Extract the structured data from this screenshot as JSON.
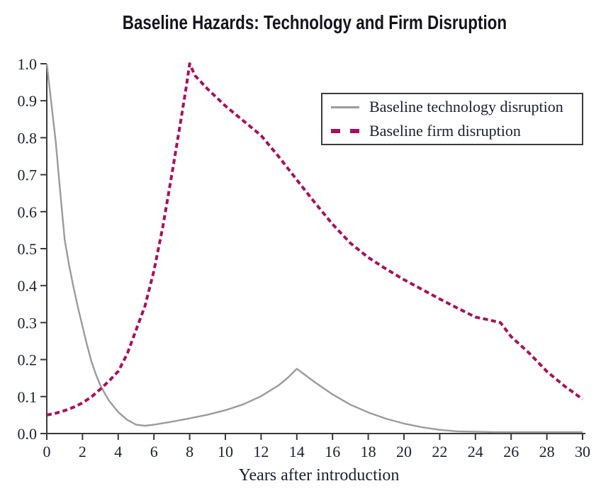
{
  "title": "Baseline Hazards: Technology and Firm Disruption",
  "axes": {
    "xlabel": "Years after introduction",
    "x_ticks": [
      "0",
      "2",
      "4",
      "6",
      "8",
      "10",
      "12",
      "14",
      "16",
      "18",
      "20",
      "22",
      "24",
      "26",
      "28",
      "30"
    ],
    "y_ticks": [
      "0.0",
      "0.1",
      "0.2",
      "0.3",
      "0.4",
      "0.5",
      "0.6",
      "0.7",
      "0.8",
      "0.9",
      "1.0"
    ]
  },
  "legend": {
    "items": [
      {
        "label": "Baseline technology disruption",
        "swatch": "solid-line",
        "color": "#9b9b9b"
      },
      {
        "label": "Baseline firm disruption",
        "swatch": "dashed-line",
        "color": "#a8105e"
      }
    ]
  },
  "colors": {
    "technology_line": "#9b9b9b",
    "firm_line": "#a8105e",
    "axis": "#3a3a3a",
    "text": "#1b2030"
  },
  "chart_data": {
    "type": "line",
    "title": "Baseline Hazards: Technology and Firm Disruption",
    "xlabel": "Years after introduction",
    "ylabel": "",
    "xlim": [
      0,
      30
    ],
    "ylim": [
      0,
      1.0
    ],
    "x_tick_step": 2,
    "y_tick_step": 0.1,
    "grid": false,
    "legend_position": "upper right",
    "series": [
      {
        "name": "Baseline technology disruption",
        "color": "#9b9b9b",
        "style": "solid",
        "width": 2.4,
        "points": [
          [
            0,
            1.0
          ],
          [
            0.25,
            0.895
          ],
          [
            0.5,
            0.79
          ],
          [
            0.75,
            0.655
          ],
          [
            1,
            0.525
          ],
          [
            1.25,
            0.455
          ],
          [
            1.5,
            0.395
          ],
          [
            1.75,
            0.34
          ],
          [
            2,
            0.29
          ],
          [
            2.25,
            0.24
          ],
          [
            2.5,
            0.195
          ],
          [
            2.75,
            0.16
          ],
          [
            3,
            0.13
          ],
          [
            3.25,
            0.108
          ],
          [
            3.5,
            0.088
          ],
          [
            4,
            0.058
          ],
          [
            4.5,
            0.037
          ],
          [
            5,
            0.024
          ],
          [
            5.5,
            0.021
          ],
          [
            6,
            0.024
          ],
          [
            6.5,
            0.028
          ],
          [
            7,
            0.032
          ],
          [
            8,
            0.041
          ],
          [
            9,
            0.051
          ],
          [
            10,
            0.063
          ],
          [
            11,
            0.079
          ],
          [
            12,
            0.101
          ],
          [
            13,
            0.131
          ],
          [
            13.5,
            0.151
          ],
          [
            14,
            0.175
          ],
          [
            14.5,
            0.157
          ],
          [
            15,
            0.139
          ],
          [
            16,
            0.106
          ],
          [
            17,
            0.078
          ],
          [
            18,
            0.057
          ],
          [
            19,
            0.04
          ],
          [
            20,
            0.027
          ],
          [
            21,
            0.017
          ],
          [
            22,
            0.01
          ],
          [
            23,
            0.006
          ],
          [
            24,
            0.005
          ],
          [
            25,
            0.004
          ],
          [
            26,
            0.004
          ],
          [
            27,
            0.004
          ],
          [
            28,
            0.004
          ],
          [
            29,
            0.004
          ],
          [
            30,
            0.004
          ]
        ]
      },
      {
        "name": "Baseline firm disruption",
        "color": "#a8105e",
        "style": "dashed",
        "width": 4,
        "points": [
          [
            0,
            0.05
          ],
          [
            0.5,
            0.055
          ],
          [
            1,
            0.062
          ],
          [
            1.5,
            0.071
          ],
          [
            2,
            0.083
          ],
          [
            2.5,
            0.099
          ],
          [
            3,
            0.12
          ],
          [
            3.5,
            0.143
          ],
          [
            4,
            0.168
          ],
          [
            4.5,
            0.215
          ],
          [
            5,
            0.28
          ],
          [
            5.5,
            0.345
          ],
          [
            6,
            0.44
          ],
          [
            6.5,
            0.56
          ],
          [
            7,
            0.7
          ],
          [
            7.5,
            0.845
          ],
          [
            7.8,
            0.935
          ],
          [
            8,
            1.0
          ],
          [
            8.3,
            0.968
          ],
          [
            9,
            0.932
          ],
          [
            10,
            0.886
          ],
          [
            11,
            0.846
          ],
          [
            12,
            0.806
          ],
          [
            13,
            0.748
          ],
          [
            14,
            0.686
          ],
          [
            15,
            0.625
          ],
          [
            16,
            0.566
          ],
          [
            17,
            0.515
          ],
          [
            18,
            0.476
          ],
          [
            19,
            0.445
          ],
          [
            20,
            0.416
          ],
          [
            21,
            0.39
          ],
          [
            22,
            0.364
          ],
          [
            23,
            0.339
          ],
          [
            24,
            0.315
          ],
          [
            24.6,
            0.309
          ],
          [
            25.4,
            0.3
          ],
          [
            26,
            0.262
          ],
          [
            27,
            0.218
          ],
          [
            28,
            0.168
          ],
          [
            29,
            0.128
          ],
          [
            30,
            0.093
          ]
        ]
      }
    ]
  }
}
